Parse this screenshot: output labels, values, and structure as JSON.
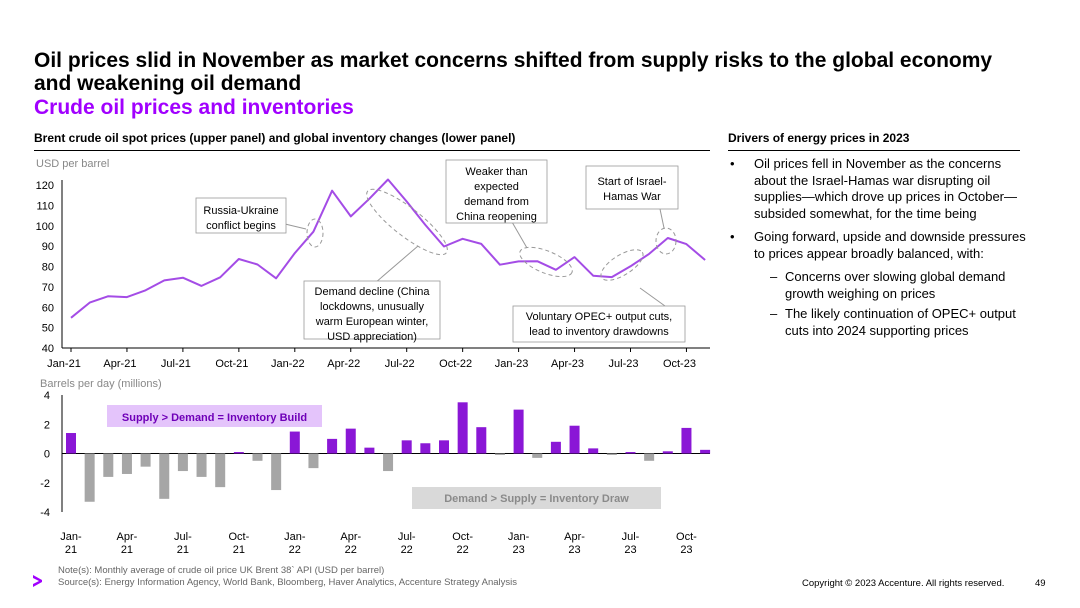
{
  "slide": {
    "title": "Oil prices slid in November as market concerns shifted from supply risks to the global economy and weakening oil demand",
    "subtitle": "Crude oil prices and inventories",
    "left_header": "Brent crude oil spot prices (upper panel) and global inventory changes (lower panel)",
    "right_header": "Drivers of energy prices in 2023",
    "bullets": [
      "Oil prices fell in November as the concerns about the Israel-Hamas war disrupting oil supplies—which drove up prices in October—subsided somewhat, for the time being",
      "Going forward, upside and downside pressures to prices appear broadly balanced, with:"
    ],
    "sub_bullets": [
      "Concerns over slowing global demand growth weighing on prices",
      "The likely continuation of OPEC+ output cuts into 2024 supporting prices"
    ],
    "bullet_marker": "•",
    "sub_marker": "–",
    "note": "Note(s): Monthly average of crude oil price UK Brent 38` API (USD per barrel)",
    "source": "Source(s): Energy Information Agency, World Bank, Bloomberg, Haver Analytics, Accenture Strategy Analysis",
    "copyright": "Copyright © 2023 Accenture. All rights reserved.",
    "page_number": "49"
  },
  "colors": {
    "accent": "#a100ff",
    "bar_pos": "#8a17d6",
    "bar_neg": "#a6a6a6",
    "line": "#a44ce6",
    "box_purple": "#e4c4fb",
    "box_gray": "#d9d9d9"
  },
  "chart_data": [
    {
      "type": "line",
      "ylabel": "USD per barrel",
      "ylim": [
        40,
        120
      ],
      "yticks": [
        40,
        50,
        60,
        70,
        80,
        90,
        100,
        110,
        120
      ],
      "xticks": [
        "Jan-21",
        "Apr-21",
        "Jul-21",
        "Oct-21",
        "Jan-22",
        "Apr-22",
        "Jul-22",
        "Oct-22",
        "Jan-23",
        "Apr-23",
        "Jul-23",
        "Oct-23"
      ],
      "series": [
        {
          "name": "Brent crude oil spot price",
          "values": [
            54.8,
            62.3,
            65.4,
            65.0,
            68.3,
            73.2,
            74.5,
            70.5,
            74.7,
            83.7,
            81.0,
            74.2,
            86.6,
            97.1,
            117.2,
            104.6,
            113.3,
            122.7,
            111.9,
            100.4,
            89.8,
            93.6,
            91.1,
            80.9,
            82.5,
            82.6,
            78.4,
            84.6,
            75.5,
            74.8,
            80.1,
            86.2,
            94.0,
            91.0,
            83.2
          ]
        }
      ],
      "annotations": [
        {
          "id": "russia",
          "text": [
            "Russia-Ukraine",
            "conflict begins"
          ]
        },
        {
          "id": "demand",
          "text": [
            "Demand decline (China",
            "lockdowns, unusually",
            "warm European winter,",
            "USD appreciation)"
          ]
        },
        {
          "id": "china",
          "text": [
            "Weaker than",
            "expected",
            "demand from",
            "China reopening"
          ]
        },
        {
          "id": "opec",
          "text": [
            "Voluntary OPEC+ output cuts,",
            "lead to inventory drawdowns"
          ]
        },
        {
          "id": "israel",
          "text": [
            "Start of Israel-",
            "Hamas War"
          ]
        }
      ]
    },
    {
      "type": "bar",
      "ylabel": "Barrels per day (millions)",
      "ylim": [
        -4,
        4
      ],
      "yticks": [
        -4,
        -2,
        0,
        2,
        4
      ],
      "xticks": [
        [
          "Jan-",
          "21"
        ],
        [
          "Apr-",
          "21"
        ],
        [
          "Jul-",
          "21"
        ],
        [
          "Oct-",
          "21"
        ],
        [
          "Jan-",
          "22"
        ],
        [
          "Apr-",
          "22"
        ],
        [
          "Jul-",
          "22"
        ],
        [
          "Oct-",
          "22"
        ],
        [
          "Jan-",
          "23"
        ],
        [
          "Apr-",
          "23"
        ],
        [
          "Jul-",
          "23"
        ],
        [
          "Oct-",
          "23"
        ]
      ],
      "values": [
        1.4,
        -3.3,
        -1.6,
        -1.4,
        -0.9,
        -3.1,
        -1.2,
        -1.6,
        -2.3,
        0.1,
        -0.5,
        -2.5,
        1.5,
        -1.0,
        1.0,
        1.7,
        0.4,
        -1.2,
        0.9,
        0.7,
        0.9,
        3.5,
        1.8,
        -0.1,
        3.0,
        -0.3,
        0.8,
        1.9,
        0.35,
        -0.1,
        0.1,
        -0.5,
        0.15,
        1.75,
        0.25
      ],
      "annotations": [
        {
          "id": "build",
          "text": "Supply > Demand = Inventory Build"
        },
        {
          "id": "draw",
          "text": "Demand > Supply = Inventory Draw"
        }
      ]
    }
  ]
}
